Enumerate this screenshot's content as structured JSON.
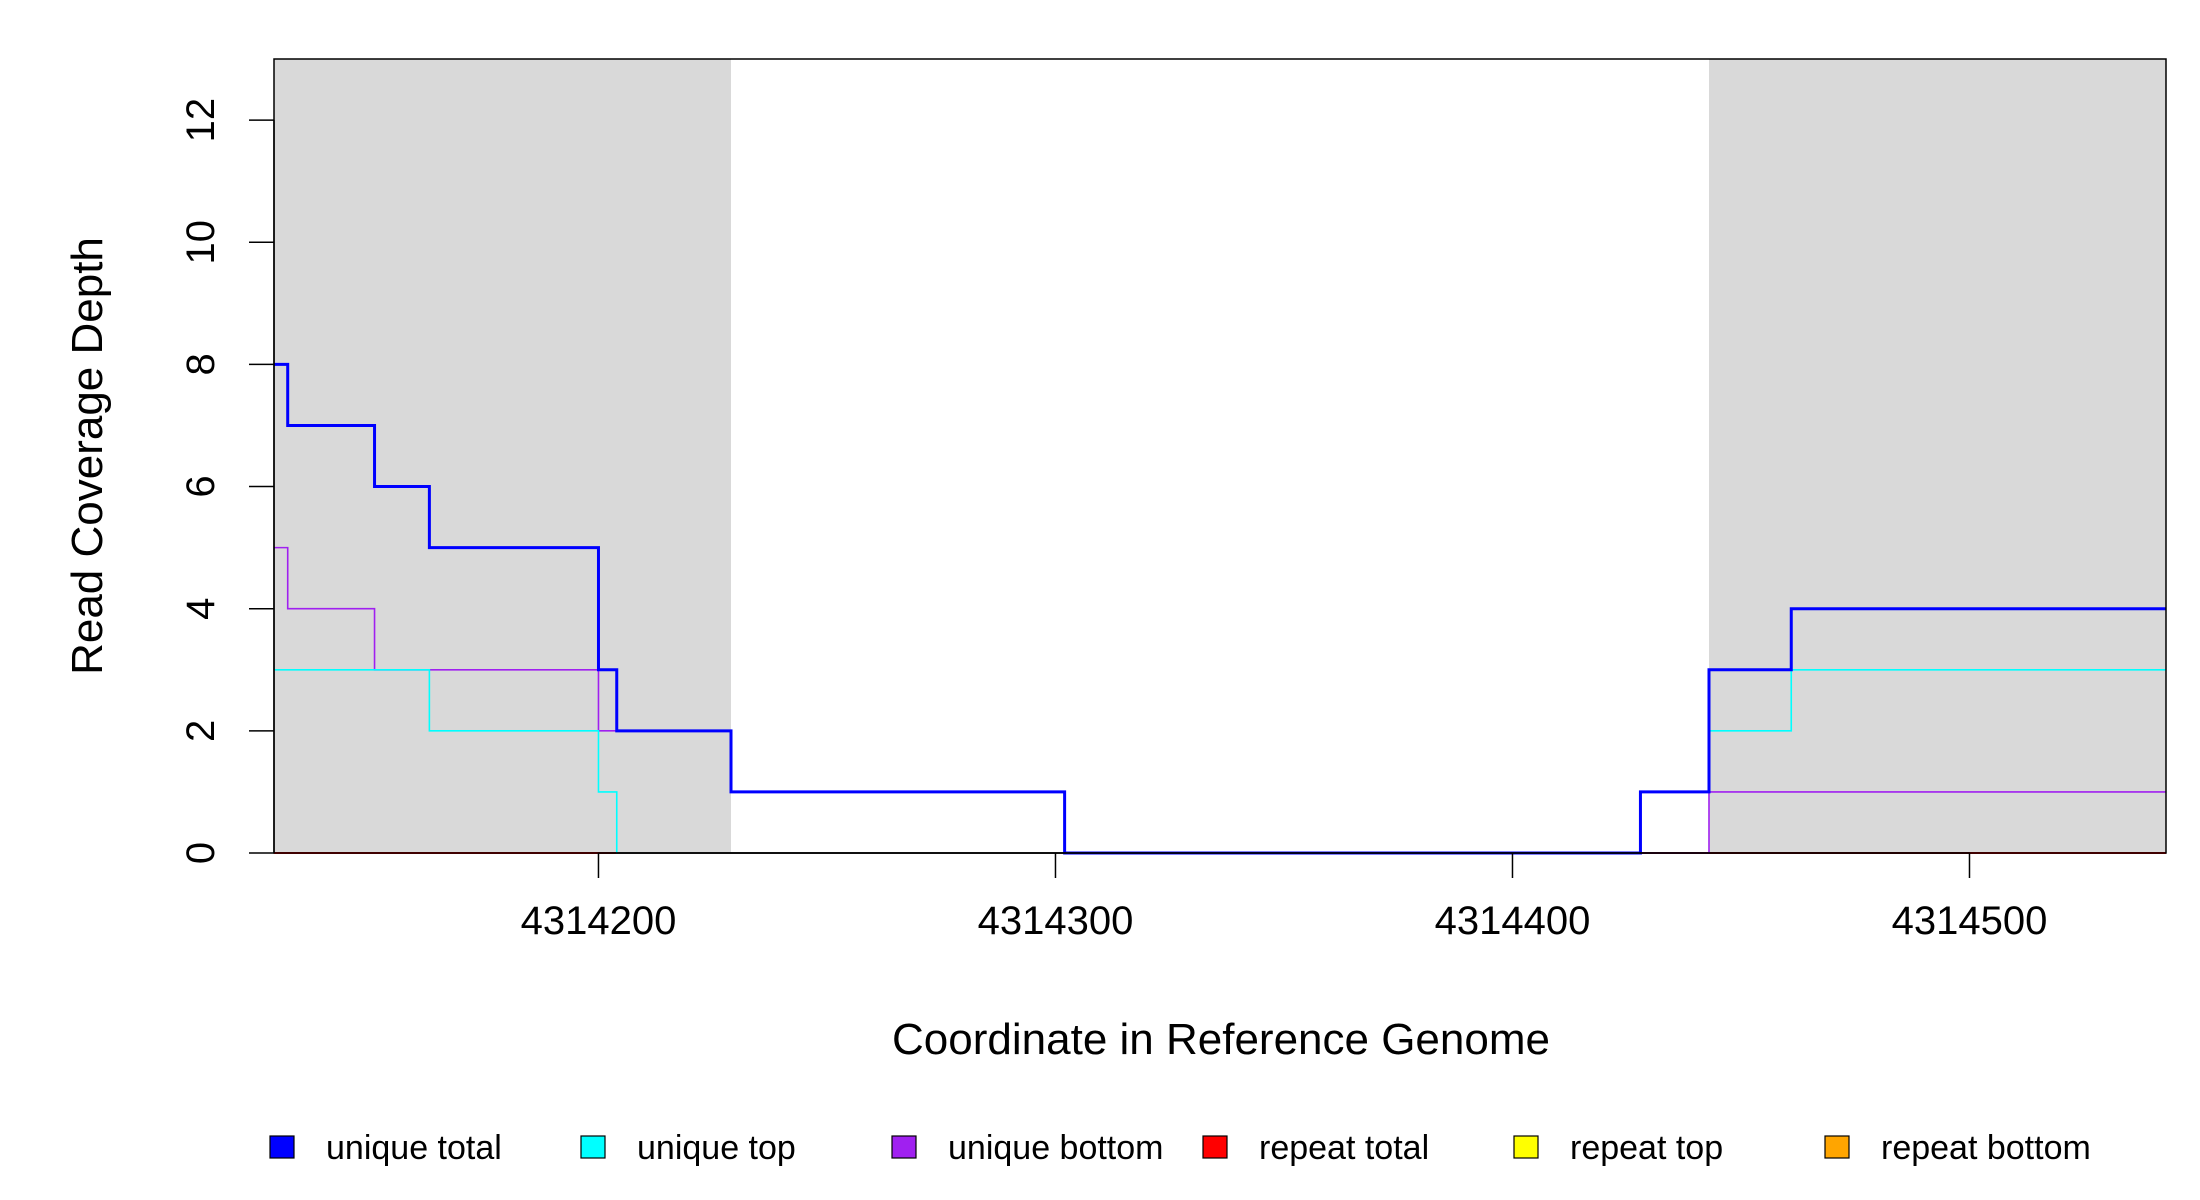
{
  "chart_data": {
    "type": "line",
    "xlabel": "Coordinate in Reference Genome",
    "ylabel": "Read Coverage Depth",
    "xlim": [
      4314129,
      4314543
    ],
    "ylim": [
      0,
      13
    ],
    "x_ticks": [
      4314200,
      4314300,
      4314400,
      4314500
    ],
    "x_tick_labels": [
      "4314200",
      "4314300",
      "4314400",
      "4314500"
    ],
    "y_ticks": [
      0,
      2,
      4,
      6,
      8,
      10,
      12
    ],
    "y_tick_labels": [
      "0",
      "2",
      "4",
      "6",
      "8",
      "10",
      "12"
    ],
    "shaded_regions": [
      {
        "x_start": 4314129,
        "x_end": 4314229
      },
      {
        "x_start": 4314443,
        "x_end": 4314543
      }
    ],
    "shade_color": "#d9d9d9",
    "series": [
      {
        "name": "unique total",
        "color": "#0000ff",
        "points": [
          [
            4314129,
            8
          ],
          [
            4314132,
            7
          ],
          [
            4314151,
            6
          ],
          [
            4314163,
            5
          ],
          [
            4314200,
            3
          ],
          [
            4314204,
            2
          ],
          [
            4314229,
            1
          ],
          [
            4314302,
            0
          ],
          [
            4314428,
            1
          ],
          [
            4314443,
            3
          ],
          [
            4314461,
            4
          ],
          [
            4314543,
            4
          ]
        ]
      },
      {
        "name": "unique top",
        "color": "#00ffff",
        "points": [
          [
            4314129,
            3
          ],
          [
            4314163,
            2
          ],
          [
            4314200,
            1
          ],
          [
            4314204,
            0
          ],
          [
            4314428,
            1
          ],
          [
            4314443,
            2
          ],
          [
            4314461,
            3
          ],
          [
            4314543,
            3
          ]
        ]
      },
      {
        "name": "unique bottom",
        "color": "#a020f0",
        "points": [
          [
            4314129,
            5
          ],
          [
            4314132,
            4
          ],
          [
            4314151,
            3
          ],
          [
            4314200,
            2
          ],
          [
            4314229,
            1
          ],
          [
            4314302,
            0
          ],
          [
            4314443,
            1
          ],
          [
            4314543,
            1
          ]
        ]
      },
      {
        "name": "repeat total",
        "color": "#ff0000",
        "points": [
          [
            4314129,
            0
          ],
          [
            4314543,
            0
          ]
        ]
      },
      {
        "name": "repeat top",
        "color": "#ffff00",
        "points": [
          [
            4314129,
            0
          ],
          [
            4314543,
            0
          ]
        ]
      },
      {
        "name": "repeat bottom",
        "color": "#ffa500",
        "points": [
          [
            4314129,
            0
          ],
          [
            4314543,
            0
          ]
        ]
      }
    ],
    "legend": {
      "placement": "bottom",
      "entries": [
        {
          "label": "unique total",
          "color": "#0000ff"
        },
        {
          "label": "unique top",
          "color": "#00ffff"
        },
        {
          "label": "unique bottom",
          "color": "#a020f0"
        },
        {
          "label": "repeat total",
          "color": "#ff0000"
        },
        {
          "label": "repeat top",
          "color": "#ffff00"
        },
        {
          "label": "repeat bottom",
          "color": "#ffa500"
        }
      ]
    }
  }
}
